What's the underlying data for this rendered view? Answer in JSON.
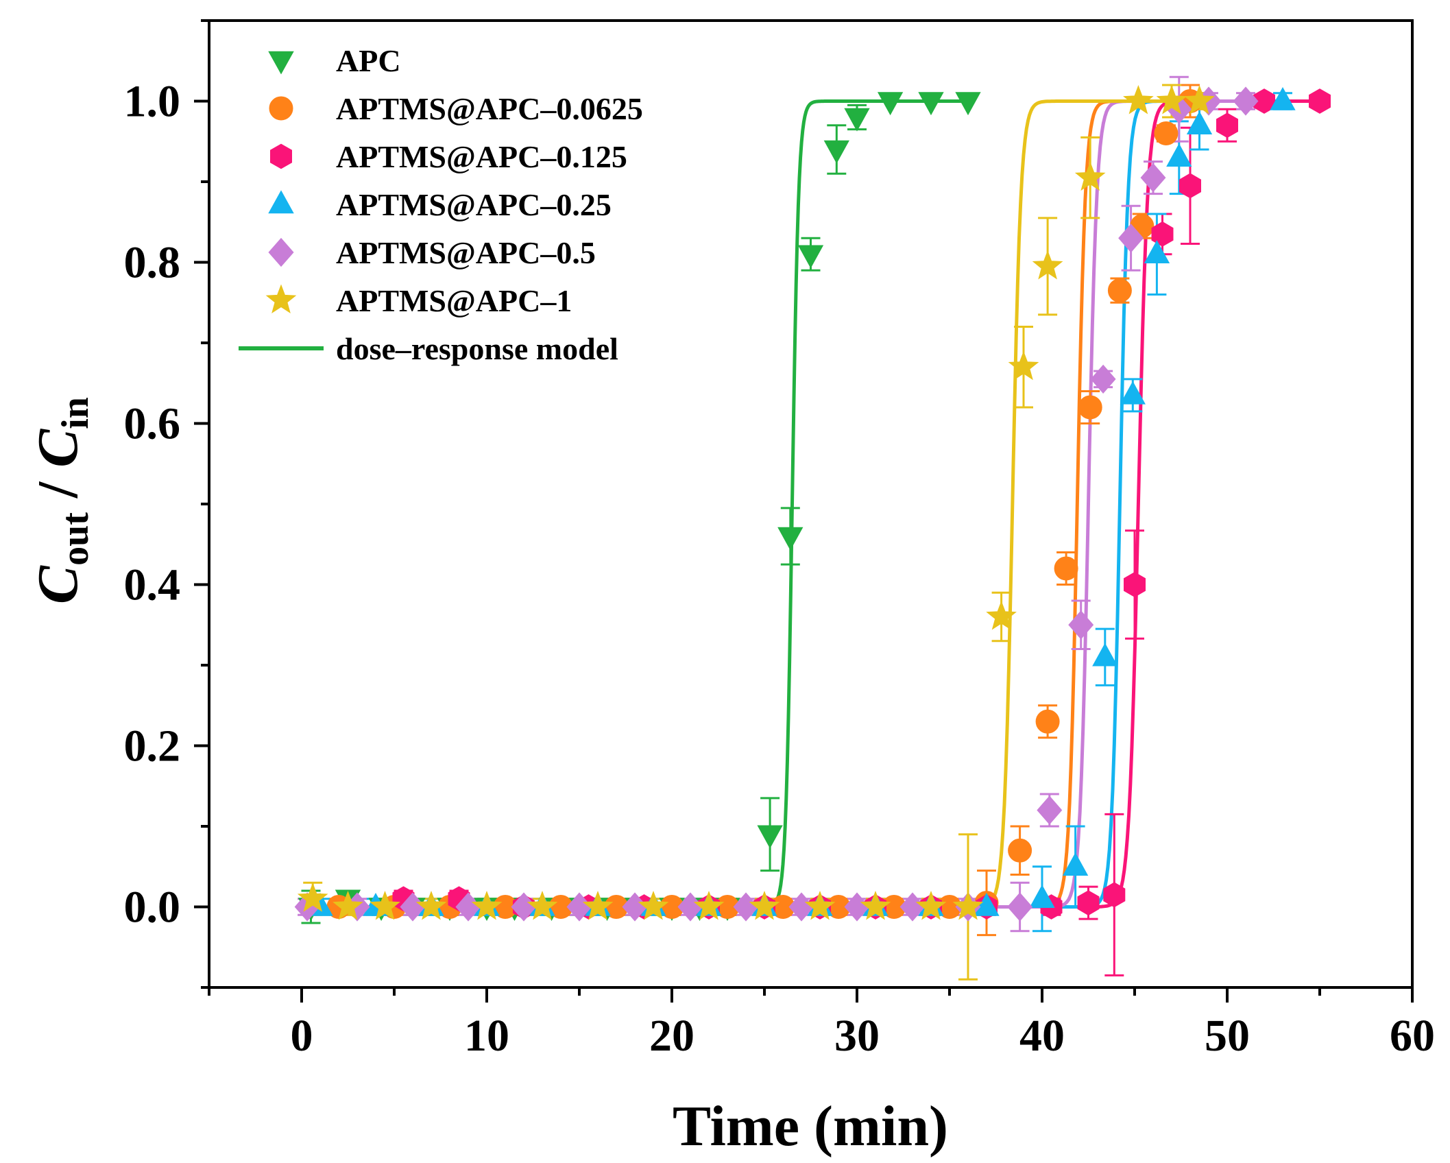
{
  "chart_data": {
    "type": "scatter",
    "title": "",
    "xlabel": "Time (min)",
    "ylabel": {
      "main": "C",
      "num_sub": "out",
      "sep": " / ",
      "den": "C",
      "den_sub": "in"
    },
    "xlim": [
      -5,
      60
    ],
    "ylim": [
      -0.1,
      1.1
    ],
    "xticks": [
      0,
      10,
      20,
      30,
      40,
      50,
      60
    ],
    "xtick_labels": [
      "0",
      "10",
      "20",
      "30",
      "40",
      "50",
      "60"
    ],
    "yticks": [
      0.0,
      0.2,
      0.4,
      0.6,
      0.8,
      1.0
    ],
    "ytick_labels": [
      "0.0",
      "0.2",
      "0.4",
      "0.6",
      "0.8",
      "1.0"
    ],
    "grid": false,
    "legend_position": "top-left",
    "series": [
      {
        "name": "APC",
        "color": "#22b040",
        "marker": "triangle-down",
        "fit": {
          "x0": 26.5,
          "p": 0.38
        },
        "x": [
          0.5,
          2.5,
          4.3,
          6,
          8,
          10,
          11.5,
          13.5,
          15,
          16.5,
          18,
          20,
          21.5,
          23,
          25.3,
          26.4,
          27.5,
          28.9,
          30,
          31.8,
          34,
          36
        ],
        "y": [
          0,
          0.01,
          0,
          0,
          0,
          0,
          0,
          0,
          0,
          0,
          0,
          0,
          0,
          0,
          0.09,
          0.46,
          0.81,
          0.94,
          0.98,
          1.0,
          1.0,
          1.0
        ],
        "err": [
          0.02,
          0.01,
          0.01,
          0.01,
          0.01,
          0.01,
          0.01,
          0.01,
          0.01,
          0.01,
          0.01,
          0.01,
          0.01,
          0.01,
          0.045,
          0.035,
          0.02,
          0.03,
          0.015,
          0.0,
          0.0,
          0.0
        ]
      },
      {
        "name": "APTMS@APC–0.0625",
        "color": "#ff8218",
        "marker": "circle",
        "fit": {
          "x0": 41.9,
          "p": 0.48
        },
        "x": [
          2,
          5,
          8,
          11,
          14,
          17,
          20,
          23,
          26,
          29,
          32,
          35,
          37,
          38.8,
          40.3,
          41.3,
          42.6,
          44.2,
          45.4,
          46.7,
          48
        ],
        "y": [
          0,
          0,
          0,
          0,
          0,
          0,
          0,
          0,
          0,
          0,
          0,
          0,
          0.005,
          0.07,
          0.23,
          0.42,
          0.62,
          0.765,
          0.845,
          0.96,
          1.0
        ],
        "err": [
          0.01,
          0.01,
          0.01,
          0.01,
          0.01,
          0.01,
          0.01,
          0.01,
          0.01,
          0.01,
          0.01,
          0.01,
          0.04,
          0.03,
          0.02,
          0.02,
          0.02,
          0.015,
          0.015,
          0.01,
          0.02
        ]
      },
      {
        "name": "APTMS@APC–0.125",
        "color": "#fa1478",
        "marker": "hexagon",
        "fit": {
          "x0": 45.2,
          "p": 0.55
        },
        "x": [
          5.5,
          8.5,
          12,
          15.5,
          18.5,
          22,
          25,
          28,
          31,
          34,
          37,
          40.5,
          42.5,
          43.9,
          45,
          46.5,
          48,
          50,
          52,
          55
        ],
        "y": [
          0.01,
          0.01,
          0,
          0,
          0,
          0,
          0,
          0,
          0,
          0,
          0,
          0,
          0.005,
          0.015,
          0.4,
          0.835,
          0.895,
          0.97,
          1.0,
          1.0
        ],
        "err": [
          0.01,
          0.01,
          0.01,
          0.01,
          0.01,
          0.01,
          0.01,
          0.01,
          0.01,
          0.01,
          0.01,
          0.01,
          0.02,
          0.1,
          0.067,
          0.025,
          0.072,
          0.02,
          0.005,
          0.0
        ]
      },
      {
        "name": "APTMS@APC–0.25",
        "color": "#14b4f0",
        "marker": "triangle-up",
        "fit": {
          "x0": 44.2,
          "p": 0.48
        },
        "x": [
          1,
          4,
          7,
          10,
          13,
          16,
          19,
          22,
          25,
          28,
          31,
          34,
          37,
          40,
          41.8,
          43.4,
          44.9,
          46.2,
          47.4,
          48.5,
          53
        ],
        "y": [
          0,
          0,
          0,
          0,
          0,
          0,
          0,
          0,
          0,
          0,
          0,
          0,
          0,
          0.01,
          0.05,
          0.31,
          0.635,
          0.81,
          0.93,
          0.97,
          1.0
        ],
        "err": [
          0.01,
          0.01,
          0.01,
          0.01,
          0.01,
          0.01,
          0.01,
          0.01,
          0.01,
          0.01,
          0.01,
          0.01,
          0.01,
          0.04,
          0.05,
          0.035,
          0.02,
          0.05,
          0.045,
          0.03,
          0.01
        ]
      },
      {
        "name": "APTMS@APC–0.5",
        "color": "#c87dd7",
        "marker": "diamond",
        "fit": {
          "x0": 42.5,
          "p": 0.5
        },
        "x": [
          0.3,
          3,
          6,
          9,
          12,
          15,
          18,
          21,
          24,
          27,
          30,
          33,
          36,
          38.8,
          40.4,
          42.1,
          43.3,
          44.8,
          46,
          47.4,
          49,
          51
        ],
        "y": [
          0,
          0,
          0,
          0,
          0,
          0,
          0,
          0,
          0,
          0,
          0,
          0,
          0,
          0,
          0.12,
          0.35,
          0.655,
          0.83,
          0.905,
          0.99,
          1.0,
          1.0
        ],
        "err": [
          0.01,
          0.01,
          0.01,
          0.01,
          0.01,
          0.01,
          0.01,
          0.01,
          0.01,
          0.01,
          0.01,
          0.01,
          0.01,
          0.03,
          0.02,
          0.03,
          0.01,
          0.04,
          0.02,
          0.04,
          0.01,
          0.01
        ]
      },
      {
        "name": "APTMS@APC–1",
        "color": "#e8c21a",
        "marker": "star",
        "fit": {
          "x0": 38.4,
          "p": 0.5
        },
        "x": [
          0.6,
          2.5,
          4.5,
          7,
          10,
          13,
          16,
          19,
          22,
          25,
          28,
          31,
          34,
          36,
          37.8,
          39,
          40.3,
          42.6,
          45.2,
          47,
          48.5
        ],
        "y": [
          0.01,
          0,
          0,
          0,
          0,
          0,
          0,
          0,
          0,
          0,
          0,
          0,
          0,
          0,
          0.36,
          0.67,
          0.795,
          0.905,
          1.0,
          1.0,
          1.0
        ],
        "err": [
          0.02,
          0.01,
          0.01,
          0.01,
          0.01,
          0.01,
          0.01,
          0.01,
          0.01,
          0.01,
          0.01,
          0.01,
          0.01,
          0.09,
          0.03,
          0.05,
          0.06,
          0.05,
          0.0,
          0.02,
          0.01
        ]
      }
    ],
    "legend": [
      {
        "label": "APC",
        "marker": "triangle-down",
        "color": "#22b040"
      },
      {
        "label": "APTMS@APC–0.0625",
        "marker": "circle",
        "color": "#ff8218"
      },
      {
        "label": "APTMS@APC–0.125",
        "marker": "hexagon",
        "color": "#fa1478"
      },
      {
        "label": "APTMS@APC–0.25",
        "marker": "triangle-up",
        "color": "#14b4f0"
      },
      {
        "label": "APTMS@APC–0.5",
        "marker": "diamond",
        "color": "#c87dd7"
      },
      {
        "label": "APTMS@APC–1",
        "marker": "star",
        "color": "#e8c21a"
      },
      {
        "label": "dose–response model",
        "marker": "line",
        "color": "#22b040"
      }
    ]
  }
}
